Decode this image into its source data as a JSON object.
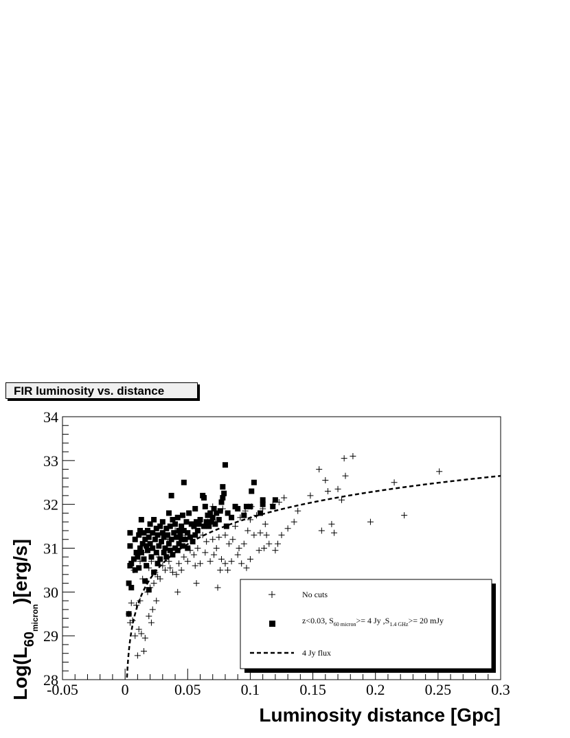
{
  "chart_data": {
    "type": "scatter",
    "title": "FIR luminosity vs. distance",
    "xlabel": "Luminosity distance [Gpc]",
    "ylabel_parts": {
      "main": "Log(L",
      "sub": "60",
      "subsub": "micron",
      "tail": ")[erg/s]"
    },
    "xlim": [
      -0.05,
      0.3
    ],
    "ylim": [
      28,
      34
    ],
    "x_ticks": [
      "-0.05",
      "0",
      "0.05",
      "0.1",
      "0.15",
      "0.2",
      "0.25",
      "0.3"
    ],
    "y_ticks": [
      "28",
      "29",
      "30",
      "31",
      "32",
      "33",
      "34"
    ],
    "legend_placement": "bottom-right",
    "legend": {
      "cross": "No cuts",
      "square_parts": {
        "a": "z<0.03, S",
        "a_sub": "60 micron",
        "b": ">= 4 Jy ,S",
        "b_sub": "1.4 GHz",
        "c": ">= 20 mJy"
      },
      "dashed": "4 Jy flux"
    },
    "series": [
      {
        "marker": "cross",
        "points": [
          [
            0.003,
            29.5
          ],
          [
            0.004,
            29.3
          ],
          [
            0.005,
            29.75
          ],
          [
            0.006,
            29.35
          ],
          [
            0.007,
            30.5
          ],
          [
            0.008,
            29.0
          ],
          [
            0.009,
            29.7
          ],
          [
            0.01,
            28.55
          ],
          [
            0.011,
            29.15
          ],
          [
            0.012,
            29.8
          ],
          [
            0.012,
            30.7
          ],
          [
            0.013,
            29.05
          ],
          [
            0.014,
            30.3
          ],
          [
            0.015,
            28.65
          ],
          [
            0.015,
            30.9
          ],
          [
            0.016,
            28.95
          ],
          [
            0.017,
            30.25
          ],
          [
            0.018,
            30.0
          ],
          [
            0.019,
            30.55
          ],
          [
            0.019,
            29.45
          ],
          [
            0.02,
            30.1
          ],
          [
            0.021,
            29.3
          ],
          [
            0.021,
            30.7
          ],
          [
            0.022,
            29.6
          ],
          [
            0.023,
            30.2
          ],
          [
            0.024,
            30.45
          ],
          [
            0.025,
            29.8
          ],
          [
            0.026,
            30.35
          ],
          [
            0.027,
            30.8
          ],
          [
            0.028,
            30.3
          ],
          [
            0.03,
            30.6
          ],
          [
            0.032,
            30.5
          ],
          [
            0.034,
            31.2
          ],
          [
            0.035,
            30.7
          ],
          [
            0.036,
            30.55
          ],
          [
            0.038,
            30.45
          ],
          [
            0.04,
            31.4
          ],
          [
            0.041,
            30.4
          ],
          [
            0.042,
            30.0
          ],
          [
            0.043,
            30.65
          ],
          [
            0.044,
            31.05
          ],
          [
            0.045,
            30.5
          ],
          [
            0.047,
            30.8
          ],
          [
            0.048,
            31.3
          ],
          [
            0.05,
            30.7
          ],
          [
            0.052,
            30.95
          ],
          [
            0.054,
            31.5
          ],
          [
            0.055,
            30.85
          ],
          [
            0.056,
            30.6
          ],
          [
            0.057,
            30.2
          ],
          [
            0.058,
            31.0
          ],
          [
            0.06,
            30.65
          ],
          [
            0.062,
            31.3
          ],
          [
            0.064,
            30.9
          ],
          [
            0.065,
            31.15
          ],
          [
            0.066,
            31.6
          ],
          [
            0.068,
            30.7
          ],
          [
            0.07,
            31.2
          ],
          [
            0.07,
            31.95
          ],
          [
            0.071,
            30.85
          ],
          [
            0.072,
            31.6
          ],
          [
            0.073,
            31.0
          ],
          [
            0.074,
            30.1
          ],
          [
            0.075,
            31.25
          ],
          [
            0.076,
            30.5
          ],
          [
            0.077,
            30.75
          ],
          [
            0.078,
            31.9
          ],
          [
            0.08,
            30.65
          ],
          [
            0.08,
            31.3
          ],
          [
            0.082,
            30.5
          ],
          [
            0.083,
            31.1
          ],
          [
            0.085,
            30.7
          ],
          [
            0.086,
            31.2
          ],
          [
            0.088,
            31.5
          ],
          [
            0.09,
            30.85
          ],
          [
            0.091,
            31.0
          ],
          [
            0.092,
            31.7
          ],
          [
            0.093,
            30.65
          ],
          [
            0.095,
            31.1
          ],
          [
            0.096,
            31.85
          ],
          [
            0.097,
            30.55
          ],
          [
            0.098,
            31.4
          ],
          [
            0.1,
            30.75
          ],
          [
            0.1,
            31.65
          ],
          [
            0.101,
            31.95
          ],
          [
            0.103,
            31.3
          ],
          [
            0.105,
            31.75
          ],
          [
            0.107,
            30.95
          ],
          [
            0.108,
            31.35
          ],
          [
            0.11,
            31.9
          ],
          [
            0.111,
            31.0
          ],
          [
            0.112,
            31.55
          ],
          [
            0.113,
            31.3
          ],
          [
            0.115,
            31.1
          ],
          [
            0.118,
            32.0
          ],
          [
            0.12,
            30.95
          ],
          [
            0.122,
            31.1
          ],
          [
            0.123,
            32.05
          ],
          [
            0.125,
            31.3
          ],
          [
            0.127,
            32.15
          ],
          [
            0.13,
            31.45
          ],
          [
            0.135,
            31.6
          ],
          [
            0.138,
            31.85
          ],
          [
            0.148,
            32.2
          ],
          [
            0.155,
            32.8
          ],
          [
            0.157,
            31.4
          ],
          [
            0.16,
            32.55
          ],
          [
            0.162,
            32.3
          ],
          [
            0.165,
            31.55
          ],
          [
            0.167,
            31.35
          ],
          [
            0.17,
            32.35
          ],
          [
            0.173,
            32.1
          ],
          [
            0.175,
            33.05
          ],
          [
            0.176,
            32.65
          ],
          [
            0.182,
            33.1
          ],
          [
            0.196,
            31.6
          ],
          [
            0.215,
            32.5
          ],
          [
            0.223,
            31.75
          ],
          [
            0.251,
            32.75
          ]
        ]
      },
      {
        "marker": "square",
        "points": [
          [
            0.003,
            29.5
          ],
          [
            0.003,
            30.2
          ],
          [
            0.004,
            30.6
          ],
          [
            0.004,
            31.05
          ],
          [
            0.004,
            31.35
          ],
          [
            0.005,
            30.65
          ],
          [
            0.005,
            30.1
          ],
          [
            0.007,
            30.75
          ],
          [
            0.008,
            30.5
          ],
          [
            0.008,
            31.2
          ],
          [
            0.009,
            30.9
          ],
          [
            0.01,
            30.8
          ],
          [
            0.011,
            30.55
          ],
          [
            0.011,
            31.3
          ],
          [
            0.012,
            31.0
          ],
          [
            0.012,
            31.4
          ],
          [
            0.013,
            30.9
          ],
          [
            0.013,
            31.65
          ],
          [
            0.014,
            31.1
          ],
          [
            0.015,
            31.35
          ],
          [
            0.015,
            30.75
          ],
          [
            0.016,
            31.2
          ],
          [
            0.016,
            30.25
          ],
          [
            0.017,
            31.05
          ],
          [
            0.017,
            30.6
          ],
          [
            0.018,
            31.4
          ],
          [
            0.018,
            30.95
          ],
          [
            0.019,
            31.25
          ],
          [
            0.019,
            30.05
          ],
          [
            0.02,
            31.55
          ],
          [
            0.02,
            31.1
          ],
          [
            0.021,
            30.8
          ],
          [
            0.022,
            31.35
          ],
          [
            0.022,
            31.0
          ],
          [
            0.023,
            31.65
          ],
          [
            0.023,
            30.45
          ],
          [
            0.024,
            31.2
          ],
          [
            0.025,
            30.9
          ],
          [
            0.025,
            31.45
          ],
          [
            0.026,
            30.65
          ],
          [
            0.026,
            31.3
          ],
          [
            0.027,
            31.05
          ],
          [
            0.028,
            31.5
          ],
          [
            0.028,
            30.75
          ],
          [
            0.029,
            31.15
          ],
          [
            0.03,
            31.35
          ],
          [
            0.03,
            31.6
          ],
          [
            0.031,
            30.9
          ],
          [
            0.031,
            31.25
          ],
          [
            0.032,
            31.0
          ],
          [
            0.033,
            31.45
          ],
          [
            0.033,
            30.8
          ],
          [
            0.034,
            31.3
          ],
          [
            0.035,
            31.8
          ],
          [
            0.035,
            31.1
          ],
          [
            0.036,
            31.5
          ],
          [
            0.036,
            30.95
          ],
          [
            0.037,
            32.2
          ],
          [
            0.037,
            31.2
          ],
          [
            0.038,
            31.65
          ],
          [
            0.038,
            30.85
          ],
          [
            0.039,
            31.35
          ],
          [
            0.04,
            31.0
          ],
          [
            0.04,
            31.55
          ],
          [
            0.041,
            31.25
          ],
          [
            0.042,
            31.7
          ],
          [
            0.042,
            30.95
          ],
          [
            0.043,
            31.4
          ],
          [
            0.043,
            31.1
          ],
          [
            0.044,
            31.3
          ],
          [
            0.045,
            31.2
          ],
          [
            0.045,
            31.5
          ],
          [
            0.046,
            31.05
          ],
          [
            0.046,
            31.75
          ],
          [
            0.047,
            32.5
          ],
          [
            0.047,
            31.4
          ],
          [
            0.048,
            31.2
          ],
          [
            0.049,
            31.6
          ],
          [
            0.05,
            31.0
          ],
          [
            0.05,
            31.35
          ],
          [
            0.051,
            31.8
          ],
          [
            0.052,
            31.25
          ],
          [
            0.053,
            31.55
          ],
          [
            0.054,
            31.15
          ],
          [
            0.055,
            31.5
          ],
          [
            0.056,
            31.9
          ],
          [
            0.056,
            31.3
          ],
          [
            0.057,
            31.6
          ],
          [
            0.058,
            31.4
          ],
          [
            0.059,
            31.55
          ],
          [
            0.06,
            31.65
          ],
          [
            0.062,
            32.2
          ],
          [
            0.063,
            32.15
          ],
          [
            0.063,
            31.5
          ],
          [
            0.064,
            31.95
          ],
          [
            0.065,
            31.6
          ],
          [
            0.066,
            31.75
          ],
          [
            0.067,
            31.5
          ],
          [
            0.068,
            31.8
          ],
          [
            0.069,
            31.6
          ],
          [
            0.07,
            31.7
          ],
          [
            0.071,
            31.9
          ],
          [
            0.072,
            31.55
          ],
          [
            0.073,
            31.8
          ],
          [
            0.075,
            31.65
          ],
          [
            0.076,
            31.85
          ],
          [
            0.077,
            32.05
          ],
          [
            0.078,
            32.4
          ],
          [
            0.078,
            32.15
          ],
          [
            0.079,
            32.25
          ],
          [
            0.08,
            32.9
          ],
          [
            0.081,
            31.5
          ],
          [
            0.082,
            31.8
          ],
          [
            0.085,
            31.7
          ],
          [
            0.088,
            31.95
          ],
          [
            0.09,
            31.9
          ],
          [
            0.095,
            31.75
          ],
          [
            0.097,
            31.95
          ],
          [
            0.1,
            31.95
          ],
          [
            0.101,
            32.3
          ],
          [
            0.103,
            32.5
          ],
          [
            0.108,
            31.8
          ],
          [
            0.11,
            32.0
          ],
          [
            0.11,
            32.1
          ],
          [
            0.118,
            31.95
          ],
          [
            0.12,
            32.1
          ]
        ]
      },
      {
        "marker": "dashed-line",
        "relation": "Log L = 32.65 + 2 log10(d / 0.3)"
      }
    ]
  }
}
